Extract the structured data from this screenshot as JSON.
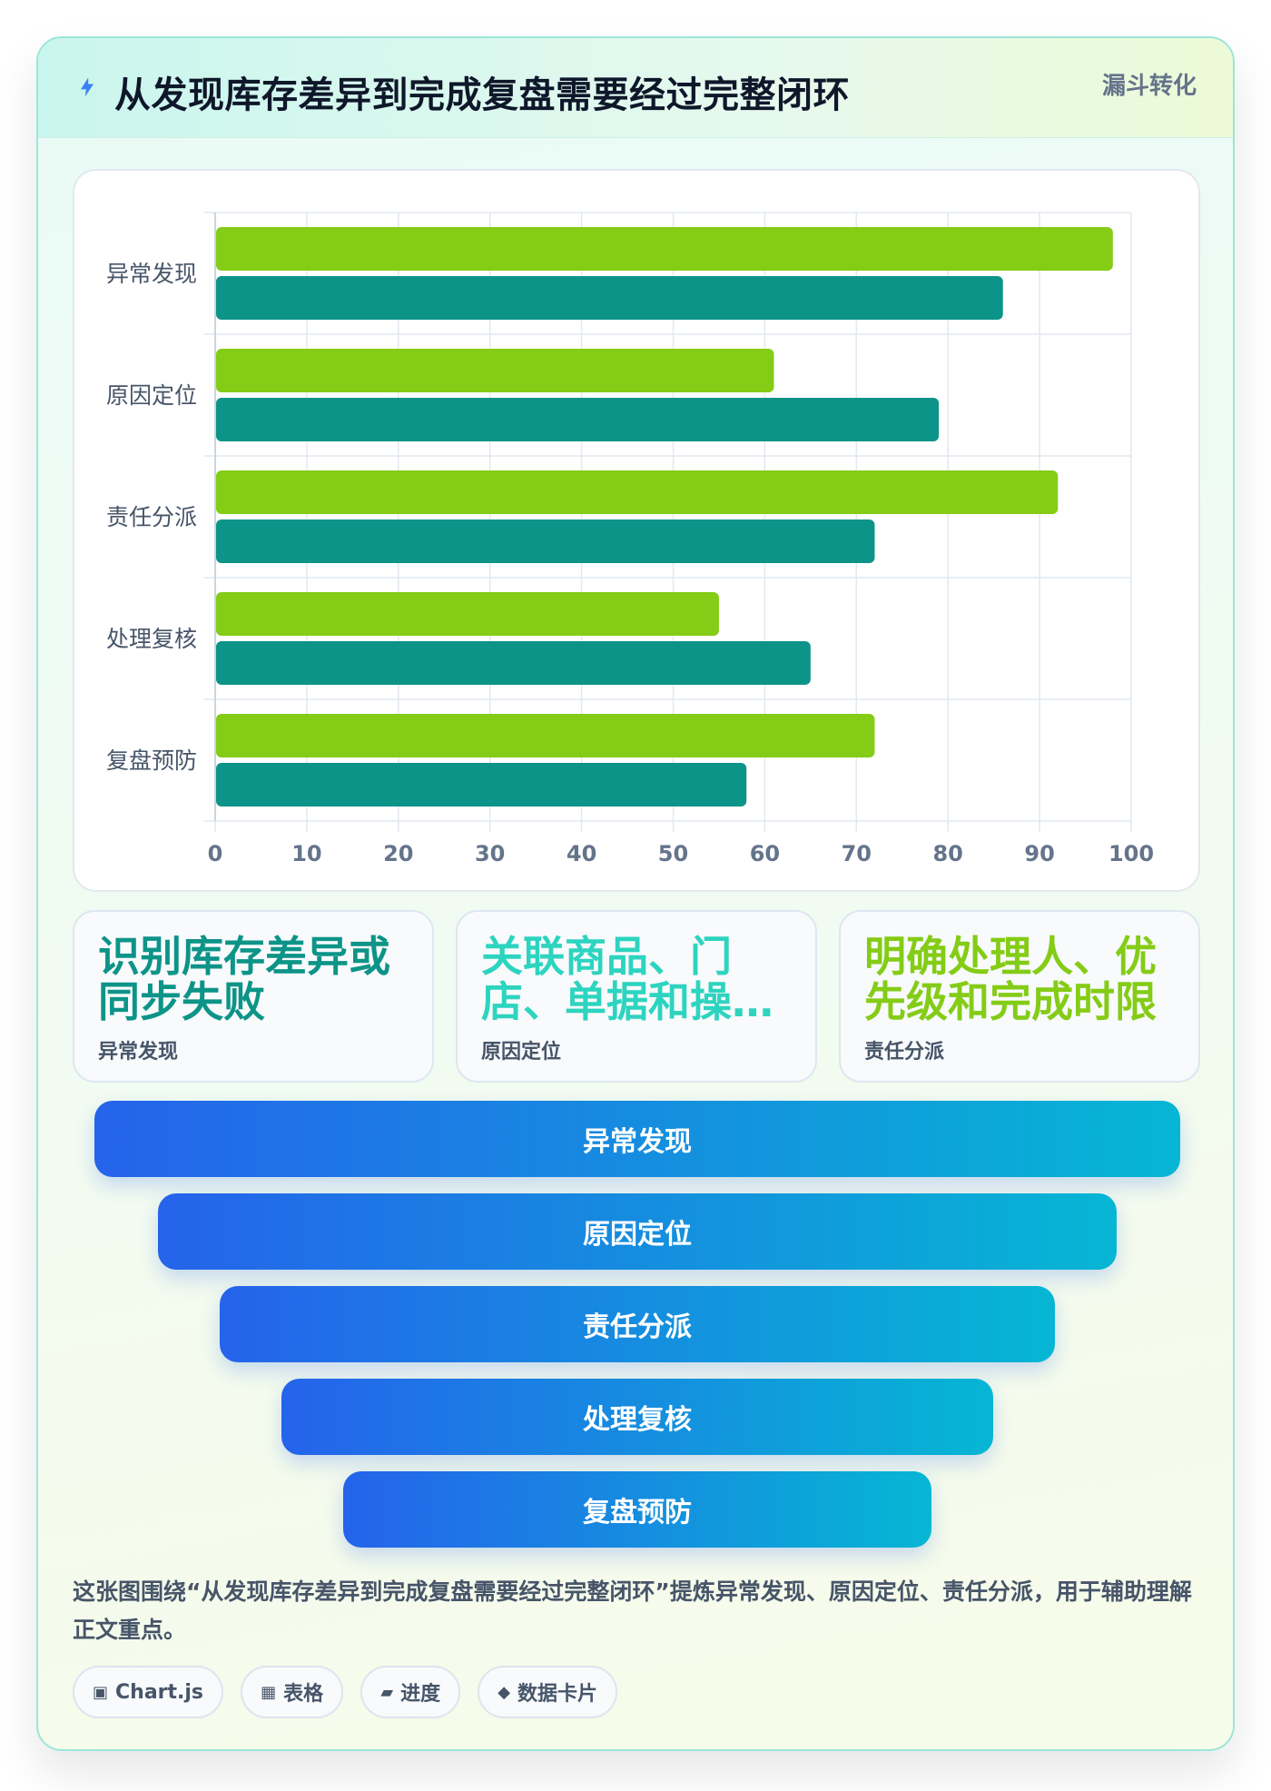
{
  "header": {
    "title": "从发现库存差异到完成复盘需要经过完整闭环",
    "badge": "漏斗转化",
    "icon": "lightning-icon"
  },
  "chart_data": {
    "type": "bar",
    "orientation": "horizontal",
    "categories": [
      "异常发现",
      "原因定位",
      "责任分派",
      "处理复核",
      "复盘预防"
    ],
    "series": [
      {
        "values": [
          98,
          61,
          92,
          55,
          72
        ],
        "color": "#84cc16"
      },
      {
        "values": [
          86,
          79,
          72,
          65,
          58
        ],
        "color": "#0d9488"
      }
    ],
    "xlim": [
      0,
      100
    ],
    "xticks": [
      0,
      10,
      20,
      30,
      40,
      50,
      60,
      70,
      80,
      90,
      100
    ],
    "grid": true,
    "legend": "none"
  },
  "stats": [
    {
      "value": "识别库存差异或同步失败",
      "label": "异常发现",
      "color": "#0d9488"
    },
    {
      "value": "关联商品、门店、单据和操作记录",
      "label": "原因定位",
      "color": "#2dd4bf"
    },
    {
      "value": "明确处理人、优先级和完成时限",
      "label": "责任分派",
      "color": "#84cc16"
    }
  ],
  "funnel": {
    "steps": [
      "异常发现",
      "原因定位",
      "责任分派",
      "处理复核",
      "复盘预防"
    ],
    "gradient": [
      "#2563eb",
      "#06b6d4"
    ]
  },
  "description": "这张图围绕“从发现库存差异到完成复盘需要经过完整闭环”提炼异常发现、原因定位、责任分派，用于辅助理解正文重点。",
  "tags": [
    {
      "icon": "▣",
      "label": "Chart.js"
    },
    {
      "icon": "▦",
      "label": "表格"
    },
    {
      "icon": "▰",
      "label": "进度"
    },
    {
      "icon": "◆",
      "label": "数据卡片"
    }
  ]
}
